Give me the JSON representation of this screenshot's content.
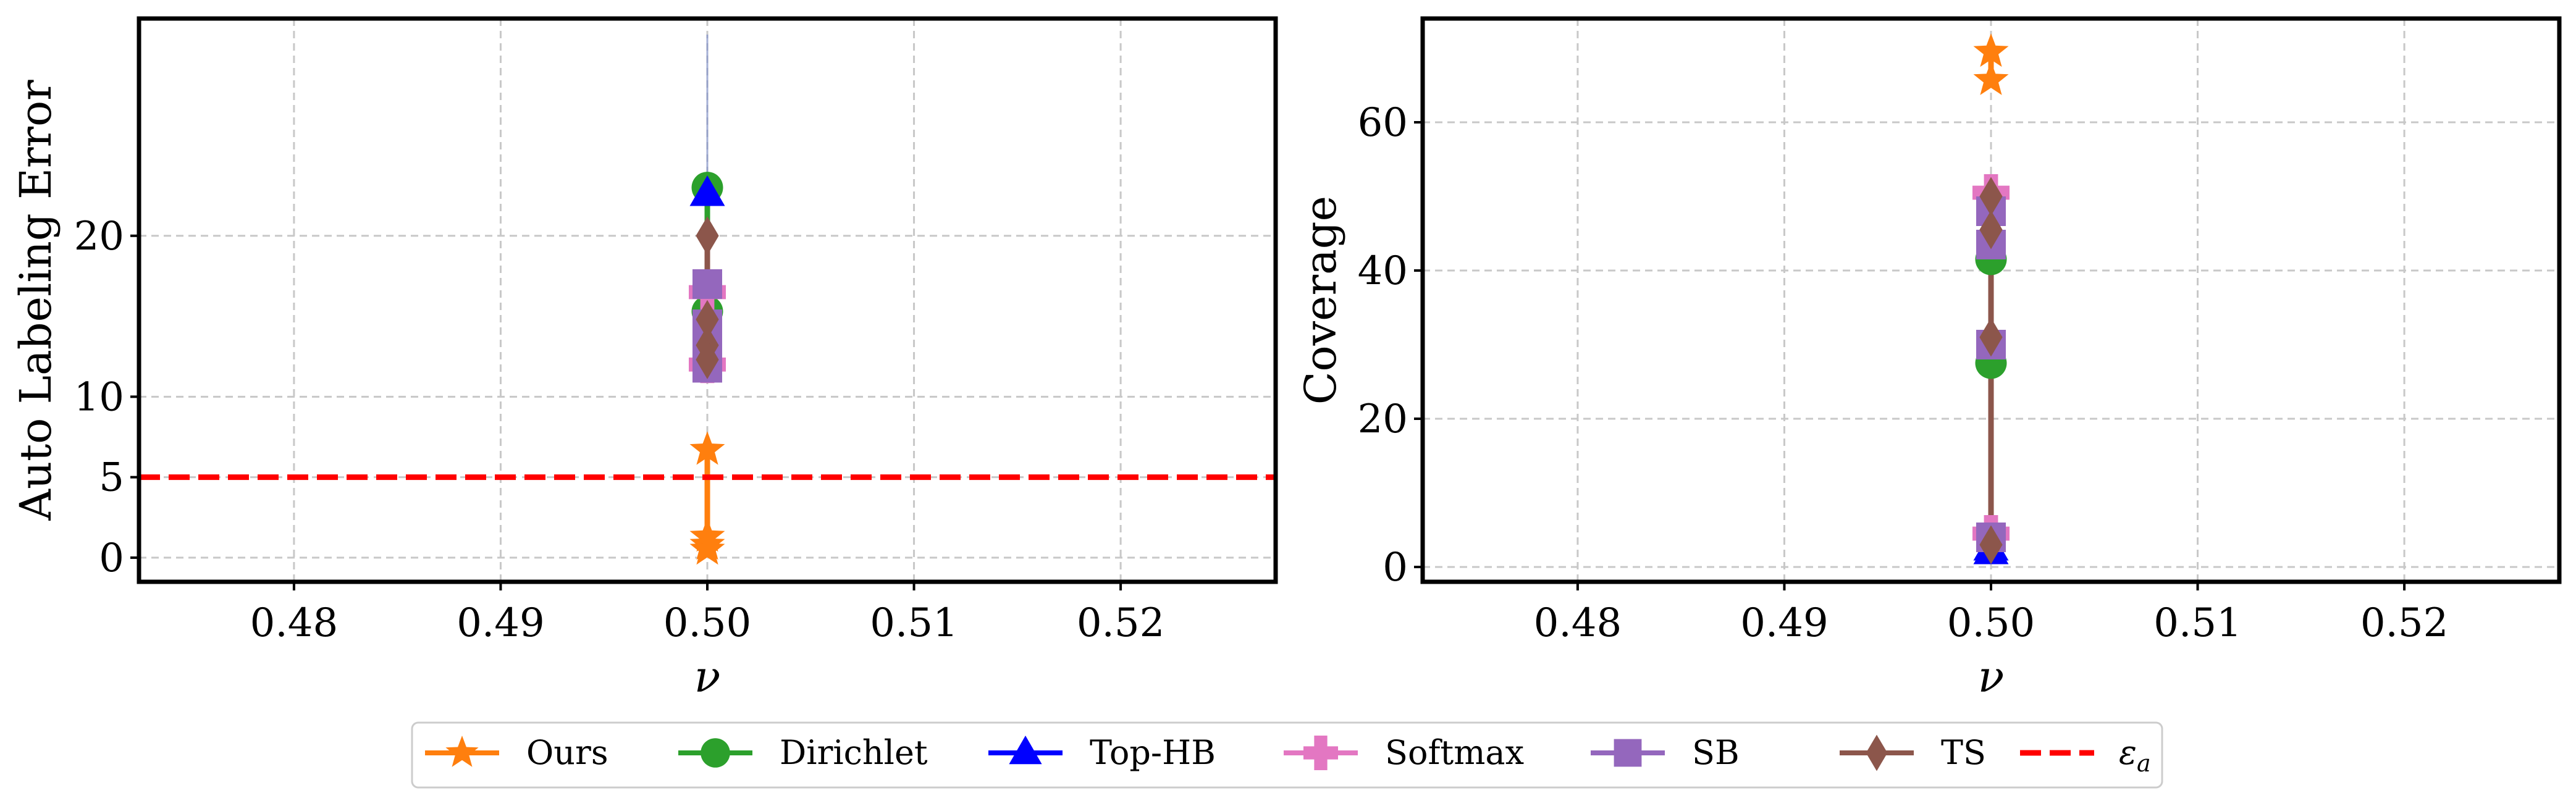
{
  "colors": {
    "Ours": "#ff7f0e",
    "Dirichlet": "#2ca02c",
    "Top-HB": "#0000ff",
    "Softmax": "#e377c2",
    "SB": "#9467bd",
    "TS": "#8c564b",
    "epsilon": "#ff0000",
    "grid": "#c8c8c8"
  },
  "legend": {
    "placement": "bottom-center",
    "items": [
      {
        "label": "Ours",
        "marker": "star",
        "color": "#ff7f0e",
        "style": "solid"
      },
      {
        "label": "Dirichlet",
        "marker": "circle",
        "color": "#2ca02c",
        "style": "solid"
      },
      {
        "label": "Top-HB",
        "marker": "triangle",
        "color": "#0000ff",
        "style": "solid"
      },
      {
        "label": "Softmax",
        "marker": "plus",
        "color": "#e377c2",
        "style": "solid"
      },
      {
        "label": "SB",
        "marker": "square",
        "color": "#9467bd",
        "style": "solid"
      },
      {
        "label": "TS",
        "marker": "diamond",
        "color": "#8c564b",
        "style": "solid"
      },
      {
        "label": "εa",
        "marker": "none",
        "color": "#ff0000",
        "style": "dashed"
      }
    ]
  },
  "chart_data": [
    {
      "type": "scatter",
      "xlabel": "ν",
      "ylabel": "Auto Labeling Error",
      "xlim": [
        0.4725,
        0.5275
      ],
      "ylim": [
        -1.5,
        33.5
      ],
      "xticks": [
        "0.48",
        "0.49",
        "0.50",
        "0.51",
        "0.52"
      ],
      "xtick_values": [
        0.48,
        0.49,
        0.5,
        0.51,
        0.52
      ],
      "yticks": [
        "0",
        "5",
        "10",
        "20"
      ],
      "ytick_values": [
        0,
        5,
        10,
        20
      ],
      "grid": true,
      "hline": {
        "name": "εa",
        "y": 5,
        "color": "#ff0000"
      },
      "series": [
        {
          "name": "Ours",
          "marker": "star",
          "x": [
            0.5,
            0.5,
            0.5,
            0.5
          ],
          "y": [
            6.7,
            1.3,
            0.8,
            0.5
          ],
          "color": "#ff7f0e"
        },
        {
          "name": "Dirichlet",
          "marker": "circle",
          "x": [
            0.5,
            0.5
          ],
          "y": [
            23.0,
            15.3
          ],
          "color": "#2ca02c"
        },
        {
          "name": "Top-HB",
          "marker": "triangle",
          "x": [
            0.5
          ],
          "y": [
            22.6
          ],
          "color": "#0000ff"
        },
        {
          "name": "Softmax",
          "marker": "plus",
          "x": [
            0.5,
            0.5
          ],
          "y": [
            16.5,
            12.0
          ],
          "color": "#e377c2"
        },
        {
          "name": "SB",
          "marker": "square",
          "x": [
            0.5,
            0.5,
            0.5,
            0.5
          ],
          "y": [
            17.0,
            14.5,
            13.0,
            11.8
          ],
          "color": "#9467bd"
        },
        {
          "name": "TS",
          "marker": "diamond",
          "x": [
            0.5,
            0.5,
            0.5,
            0.5
          ],
          "y": [
            20.0,
            14.8,
            13.2,
            12.3
          ],
          "color": "#8c564b"
        }
      ]
    },
    {
      "type": "scatter",
      "xlabel": "ν",
      "ylabel": "Coverage",
      "xlim": [
        0.4725,
        0.5275
      ],
      "ylim": [
        -2,
        74
      ],
      "xticks": [
        "0.48",
        "0.49",
        "0.50",
        "0.51",
        "0.52"
      ],
      "xtick_values": [
        0.48,
        0.49,
        0.5,
        0.51,
        0.52
      ],
      "yticks": [
        "0",
        "20",
        "40",
        "60"
      ],
      "ytick_values": [
        0,
        20,
        40,
        60
      ],
      "grid": true,
      "series": [
        {
          "name": "Ours",
          "marker": "star",
          "x": [
            0.5,
            0.5
          ],
          "y": [
            69.5,
            65.7
          ],
          "color": "#ff7f0e"
        },
        {
          "name": "Dirichlet",
          "marker": "circle",
          "x": [
            0.5,
            0.5
          ],
          "y": [
            41.5,
            27.5
          ],
          "color": "#2ca02c"
        },
        {
          "name": "Top-HB",
          "marker": "triangle",
          "x": [
            0.5,
            0.5
          ],
          "y": [
            2.5,
            2.0
          ],
          "color": "#0000ff"
        },
        {
          "name": "Softmax",
          "marker": "plus",
          "x": [
            0.5,
            0.5
          ],
          "y": [
            50.5,
            4.5
          ],
          "color": "#e377c2"
        },
        {
          "name": "SB",
          "marker": "square",
          "x": [
            0.5,
            0.5,
            0.5,
            0.5
          ],
          "y": [
            48.0,
            43.5,
            30.0,
            4.0
          ],
          "color": "#9467bd"
        },
        {
          "name": "TS",
          "marker": "diamond",
          "x": [
            0.5,
            0.5,
            0.5,
            0.5
          ],
          "y": [
            50.0,
            45.5,
            31.0,
            3.0
          ],
          "color": "#8c564b"
        }
      ]
    }
  ]
}
